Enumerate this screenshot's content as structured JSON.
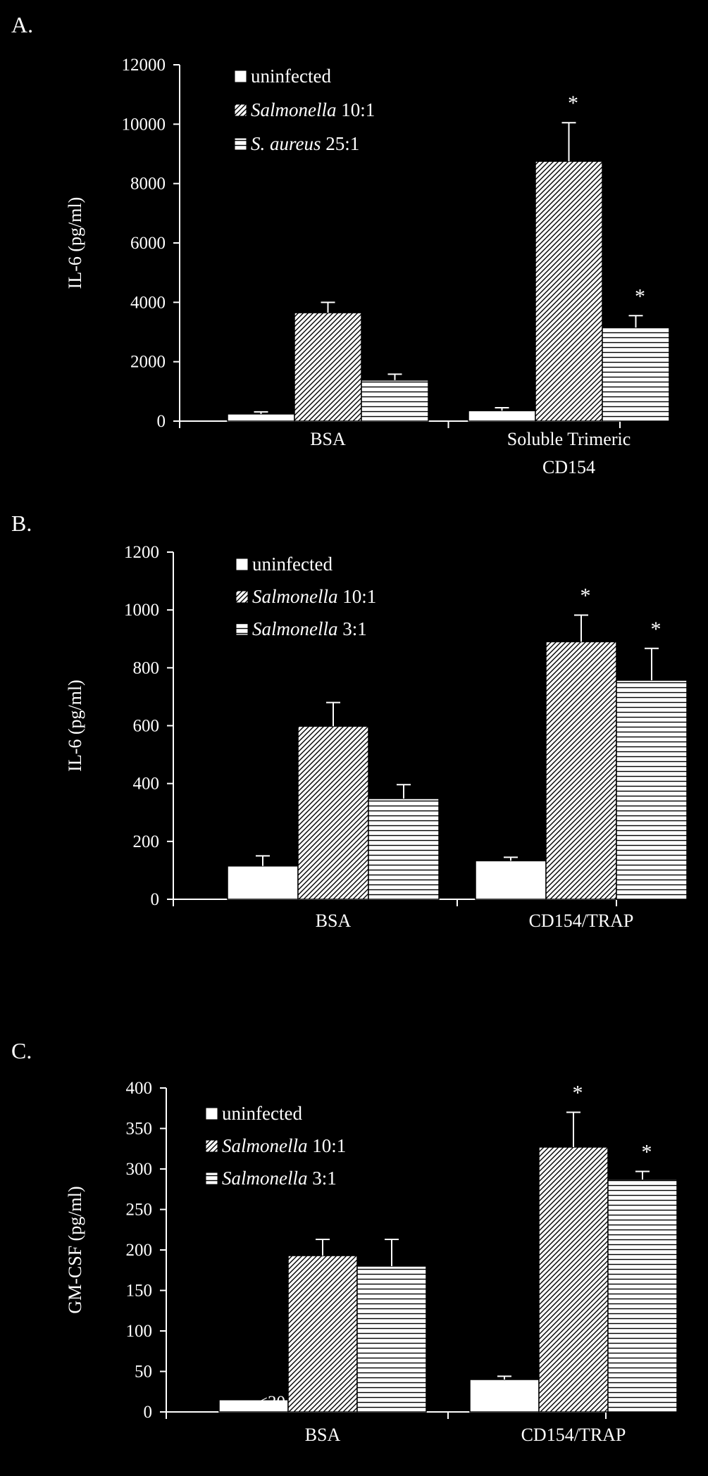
{
  "colors": {
    "background": "#000000",
    "foreground": "#ffffff"
  },
  "chart_data": [
    {
      "type": "bar",
      "panel": "A.",
      "ylabel": "IL-6 (pg/ml)",
      "xlabel": "",
      "ylim": [
        0,
        12000
      ],
      "yticks": [
        0,
        2000,
        4000,
        6000,
        8000,
        10000,
        12000
      ],
      "ytick_labels": [
        "0",
        "2000",
        "4000",
        "6000",
        "8000",
        "10000",
        "12000"
      ],
      "grid": false,
      "legend_position": "top-left",
      "categories": [
        [
          "BSA"
        ],
        [
          "Soluble Trimeric",
          "CD154"
        ]
      ],
      "series": [
        {
          "legend_italic": "",
          "legend_rest": "uninfected",
          "pattern": "open",
          "values": [
            240,
            350
          ],
          "errors": [
            70,
            100
          ],
          "sig": [
            "",
            ""
          ]
        },
        {
          "legend_italic": "Salmonella",
          "legend_rest": " 10:1",
          "pattern": "diag",
          "values": [
            3650,
            8750
          ],
          "errors": [
            350,
            1300
          ],
          "sig": [
            "",
            "*"
          ]
        },
        {
          "legend_italic": "S. aureus",
          "legend_rest": " 25:1",
          "pattern": "horiz",
          "values": [
            1380,
            3150
          ],
          "errors": [
            200,
            400
          ],
          "sig": [
            "",
            "*"
          ]
        }
      ],
      "annotations": []
    },
    {
      "type": "bar",
      "panel": "B.",
      "ylabel": "IL-6 (pg/ml)",
      "xlabel": "",
      "ylim": [
        0,
        1200
      ],
      "yticks": [
        0,
        200,
        400,
        600,
        800,
        1000,
        1200
      ],
      "ytick_labels": [
        "0",
        "200",
        "400",
        "600",
        "800",
        "1000",
        "1200"
      ],
      "grid": false,
      "legend_position": "top-left",
      "categories": [
        [
          "BSA"
        ],
        [
          "CD154/TRAP"
        ]
      ],
      "series": [
        {
          "legend_italic": "",
          "legend_rest": "uninfected",
          "pattern": "open",
          "values": [
            115,
            133
          ],
          "errors": [
            35,
            12
          ],
          "sig": [
            "",
            ""
          ]
        },
        {
          "legend_italic": "Salmonella",
          "legend_rest": " 10:1",
          "pattern": "diag",
          "values": [
            598,
            890
          ],
          "errors": [
            82,
            92
          ],
          "sig": [
            "",
            "*"
          ]
        },
        {
          "legend_italic": "Salmonella",
          "legend_rest": " 3:1",
          "pattern": "horiz",
          "values": [
            348,
            757
          ],
          "errors": [
            48,
            110
          ],
          "sig": [
            "",
            "*"
          ]
        }
      ],
      "annotations": []
    },
    {
      "type": "bar",
      "panel": "C.",
      "ylabel": "GM-CSF (pg/ml)",
      "xlabel": "",
      "ylim": [
        0,
        400
      ],
      "yticks": [
        0,
        50,
        100,
        150,
        200,
        250,
        300,
        350,
        400
      ],
      "ytick_labels": [
        "0",
        "50",
        "100",
        "150",
        "200",
        "250",
        "300",
        "350",
        "400"
      ],
      "grid": false,
      "legend_position": "top-left",
      "categories": [
        [
          "BSA"
        ],
        [
          "CD154/TRAP"
        ]
      ],
      "series": [
        {
          "legend_italic": "",
          "legend_rest": "uninfected",
          "pattern": "open",
          "values": [
            15,
            40
          ],
          "errors": [
            0,
            4
          ],
          "sig": [
            "",
            ""
          ]
        },
        {
          "legend_italic": "Salmonella",
          "legend_rest": " 10:1",
          "pattern": "diag",
          "values": [
            193,
            327
          ],
          "errors": [
            20,
            43
          ],
          "sig": [
            "",
            "*"
          ]
        },
        {
          "legend_italic": "Salmonella",
          "legend_rest": " 3:1",
          "pattern": "horiz",
          "values": [
            180,
            287
          ],
          "errors": [
            33,
            10
          ],
          "sig": [
            "",
            "*"
          ]
        }
      ],
      "annotations": [
        {
          "text": "<30",
          "category": 0,
          "series": 0
        }
      ]
    }
  ]
}
